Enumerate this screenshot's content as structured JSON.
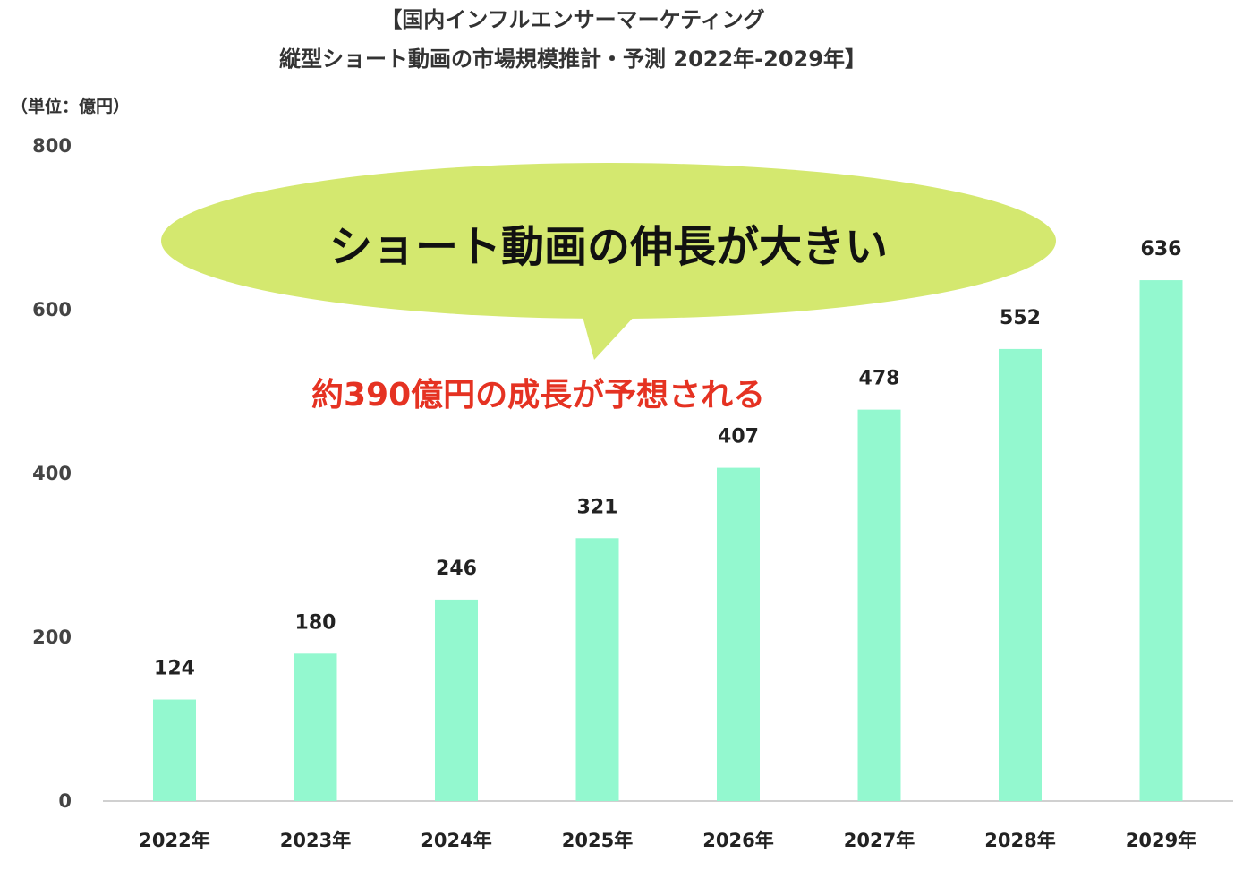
{
  "header": {
    "title_line1": "【国内インフルエンサーマーケティング",
    "title_line2": "縦型ショート動画の市場規模推計・予測 2022年-2029年】",
    "unit": "（単位：億円）"
  },
  "annotation": {
    "bubble_text": "ショート動画の伸長が大きい",
    "note_text": "約390億円の成長が予想される",
    "bubble_color": "#d4e86f",
    "note_color": "#e53222"
  },
  "chart_data": {
    "type": "bar",
    "categories": [
      "2022年",
      "2023年",
      "2024年",
      "2025年",
      "2026年",
      "2027年",
      "2028年",
      "2029年"
    ],
    "values": [
      124,
      180,
      246,
      321,
      407,
      478,
      552,
      636
    ],
    "data_labels": [
      "124",
      "180",
      "246",
      "321",
      "407",
      "478",
      "552",
      "636"
    ],
    "ylabel": "（単位：億円）",
    "ylim": [
      0,
      800
    ],
    "yticks": [
      "0",
      "200",
      "400",
      "600",
      "800"
    ],
    "grid": false,
    "bar_color": "#93f8cf",
    "legend": "none"
  }
}
